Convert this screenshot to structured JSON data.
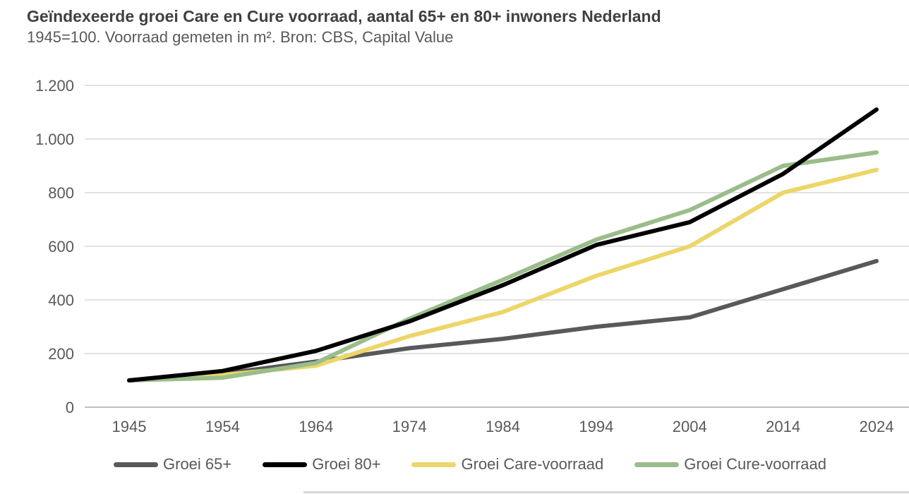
{
  "header": {
    "title": "Geïndexeerde groei Care en Cure voorraad, aantal 65+ en 80+ inwoners Nederland",
    "subtitle": "1945=100. Voorraad gemeten in m². Bron: CBS, Capital Value"
  },
  "chart_data": {
    "type": "line",
    "title": "Geïndexeerde groei Care en Cure voorraad, aantal 65+ en 80+ inwoners Nederland",
    "subtitle": "1945=100. Voorraad gemeten in m². Bron: CBS, Capital Value",
    "categories": [
      "1945",
      "1954",
      "1964",
      "1974",
      "1984",
      "1994",
      "2004",
      "2014",
      "2024"
    ],
    "series": [
      {
        "name": "Groei 65+",
        "color": "#58595B",
        "values": [
          100,
          125,
          170,
          220,
          255,
          300,
          335,
          440,
          545
        ]
      },
      {
        "name": "Groei 80+",
        "color": "#000000",
        "values": [
          100,
          135,
          210,
          320,
          455,
          605,
          690,
          870,
          1110
        ]
      },
      {
        "name": "Groei Care-voorraad",
        "color": "#EDD669",
        "values": [
          100,
          120,
          155,
          265,
          355,
          490,
          600,
          800,
          885
        ]
      },
      {
        "name": "Groei Cure-voorraad",
        "color": "#9ABD8B",
        "values": [
          100,
          110,
          165,
          330,
          475,
          625,
          735,
          900,
          950
        ]
      }
    ],
    "draw_order": [
      0,
      2,
      3,
      1
    ],
    "y_ticks": [
      {
        "value": 1200,
        "label": "1.200"
      },
      {
        "value": 1000,
        "label": "1.000"
      },
      {
        "value": 800,
        "label": "800"
      },
      {
        "value": 600,
        "label": "600"
      },
      {
        "value": 400,
        "label": "400"
      },
      {
        "value": 200,
        "label": "200"
      },
      {
        "value": 0,
        "label": "0"
      }
    ],
    "ylim": [
      0,
      1200
    ],
    "grid": "horizontal",
    "legend_position": "bottom",
    "colors": {
      "gridline": "#D9D9D9",
      "axis_line": "#BFBFBF",
      "axis_label": "#595959",
      "title": "#404040",
      "subtitle": "#595959"
    }
  }
}
